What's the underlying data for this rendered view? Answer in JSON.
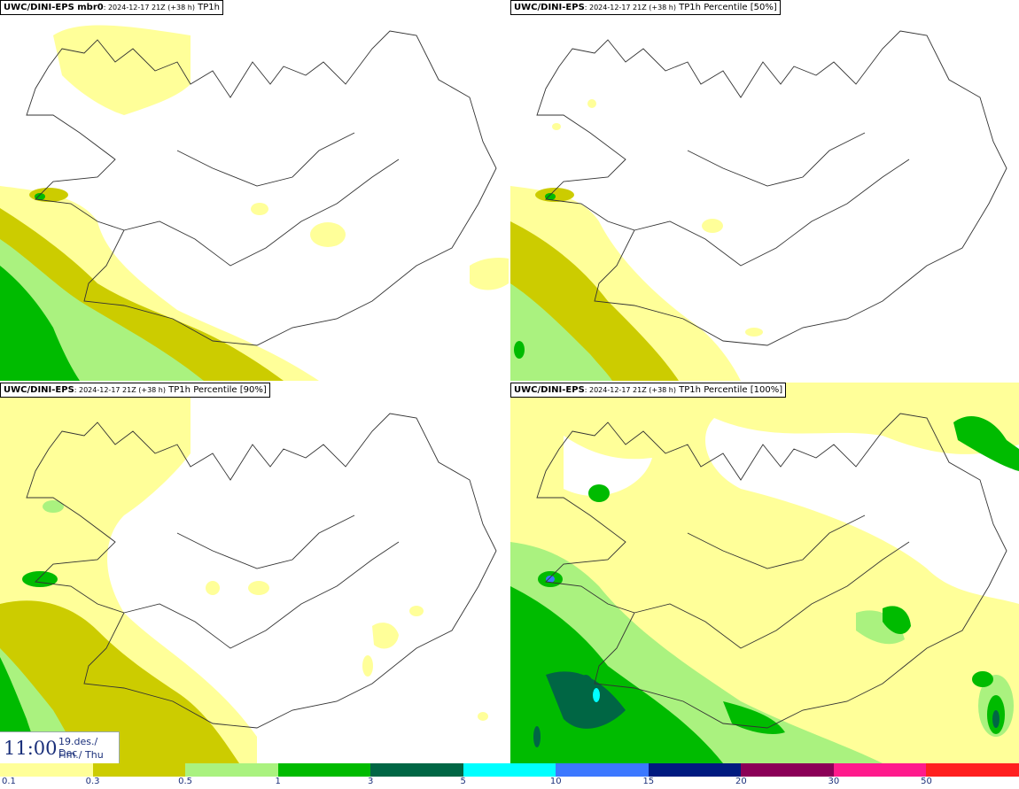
{
  "panels": [
    {
      "model": "UWC/DINI-EPS mbr0",
      "meta": ": 2024-12-17 21Z (+38 h)",
      "field": "TP1h"
    },
    {
      "model": "UWC/DINI-EPS",
      "meta": ": 2024-12-17 21Z (+38 h)",
      "field": "TP1h Percentile [50%]"
    },
    {
      "model": "UWC/DINI-EPS",
      "meta": ": 2024-12-17 21Z (+38 h)",
      "field": "TP1h Percentile [90%]"
    },
    {
      "model": "UWC/DINI-EPS",
      "meta": ": 2024-12-17 21Z (+38 h)",
      "field": "TP1h Percentile [100%]"
    }
  ],
  "valid_time": {
    "clock": "11:00",
    "date_line": "19.des./ Dec",
    "day_line": "Fim./ Thu"
  },
  "colorbar": {
    "colors": [
      "#ffff99",
      "#cccc00",
      "#aaf27f",
      "#00bb00",
      "#006644",
      "#00ffff",
      "#3c78ff",
      "#001a80",
      "#8b0057",
      "#ff1a8c",
      "#ff2020"
    ],
    "ticks": [
      "0.1",
      "0.3",
      "0.5",
      "1",
      "3",
      "5",
      "10",
      "15",
      "20",
      "30",
      "50"
    ]
  }
}
